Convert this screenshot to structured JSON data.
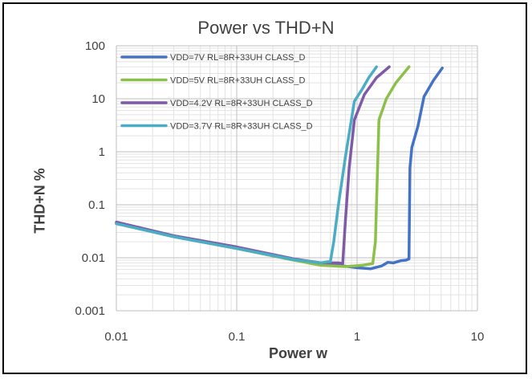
{
  "chart_data": {
    "type": "line",
    "title": "Power vs THD+N",
    "xlabel": "Power w",
    "ylabel": "THD+N %",
    "xscale": "log",
    "yscale": "log",
    "xlim": [
      0.01,
      10
    ],
    "ylim": [
      0.001,
      100
    ],
    "xticks": [
      "0.01",
      "0.1",
      "1",
      "10"
    ],
    "yticks": [
      "0.001",
      "0.01",
      "0.1",
      "1",
      "10",
      "100"
    ],
    "grid": true,
    "legend_position": "top-left",
    "series": [
      {
        "name": "VDD=7V  RL=8R+33UH CLASS_D",
        "color": "#4472C4",
        "points": [
          [
            0.01,
            0.045
          ],
          [
            0.03,
            0.025
          ],
          [
            0.1,
            0.015
          ],
          [
            0.3,
            0.009
          ],
          [
            0.6,
            0.0075
          ],
          [
            1.0,
            0.0065
          ],
          [
            1.3,
            0.0062
          ],
          [
            1.6,
            0.007
          ],
          [
            1.8,
            0.0082
          ],
          [
            2.0,
            0.008
          ],
          [
            2.3,
            0.0088
          ],
          [
            2.55,
            0.009
          ],
          [
            2.7,
            0.0095
          ],
          [
            2.72,
            0.05
          ],
          [
            2.75,
            0.5
          ],
          [
            2.85,
            1.2
          ],
          [
            3.2,
            3
          ],
          [
            3.6,
            11
          ],
          [
            4.3,
            22
          ],
          [
            5.1,
            38
          ]
        ]
      },
      {
        "name": "VDD=5V  RL=8R+33UH CLASS_D",
        "color": "#8DC04A",
        "points": [
          [
            0.01,
            0.045
          ],
          [
            0.03,
            0.025
          ],
          [
            0.1,
            0.015
          ],
          [
            0.3,
            0.009
          ],
          [
            0.5,
            0.0072
          ],
          [
            0.8,
            0.0068
          ],
          [
            1.1,
            0.0072
          ],
          [
            1.35,
            0.0078
          ],
          [
            1.42,
            0.02
          ],
          [
            1.47,
            0.3
          ],
          [
            1.52,
            4
          ],
          [
            1.75,
            10
          ],
          [
            2.1,
            20
          ],
          [
            2.7,
            40
          ]
        ]
      },
      {
        "name": "VDD=4.2V  RL=8R+33UH CLASS_D",
        "color": "#7F5BA7",
        "points": [
          [
            0.01,
            0.047
          ],
          [
            0.03,
            0.026
          ],
          [
            0.1,
            0.016
          ],
          [
            0.3,
            0.0095
          ],
          [
            0.5,
            0.008
          ],
          [
            0.7,
            0.008
          ],
          [
            0.76,
            0.0078
          ],
          [
            0.8,
            0.05
          ],
          [
            0.86,
            0.5
          ],
          [
            0.95,
            4
          ],
          [
            1.15,
            12
          ],
          [
            1.45,
            25
          ],
          [
            1.85,
            40
          ]
        ]
      },
      {
        "name": "VDD=3.7V  RL=8R+33UH CLASS_D",
        "color": "#4BACC6",
        "points": [
          [
            0.01,
            0.044
          ],
          [
            0.03,
            0.025
          ],
          [
            0.1,
            0.015
          ],
          [
            0.3,
            0.0092
          ],
          [
            0.5,
            0.008
          ],
          [
            0.6,
            0.0085
          ],
          [
            0.64,
            0.02
          ],
          [
            0.7,
            0.1
          ],
          [
            0.8,
            0.8
          ],
          [
            0.95,
            9
          ],
          [
            1.1,
            15
          ],
          [
            1.25,
            25
          ],
          [
            1.45,
            40
          ]
        ]
      }
    ]
  }
}
